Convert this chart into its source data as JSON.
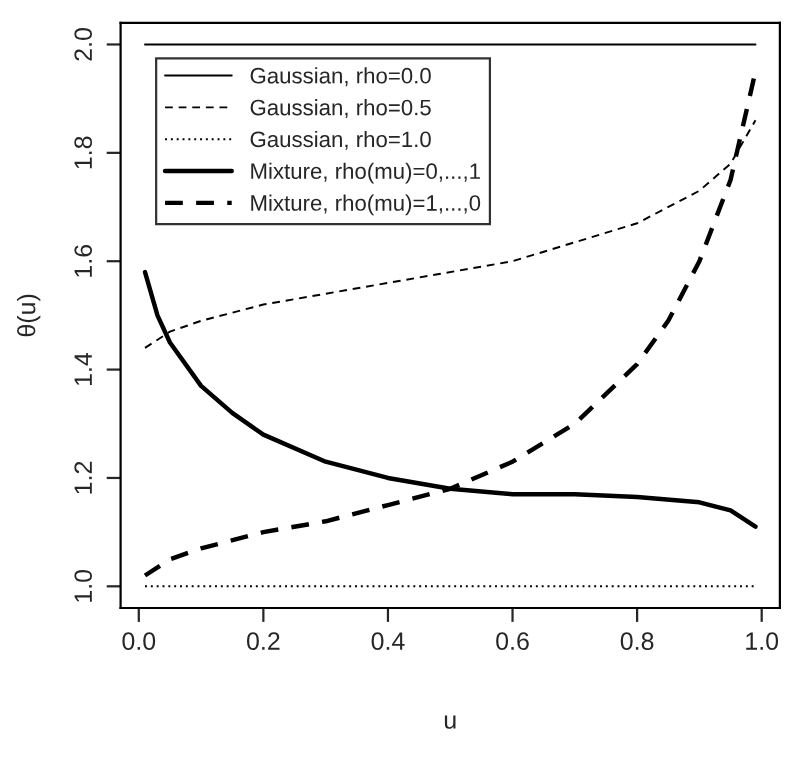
{
  "chart_data": {
    "type": "line",
    "xlabel": "u",
    "ylabel": "θ(u)",
    "xlim": [
      -0.0292,
      1.0292
    ],
    "ylim": [
      0.96,
      2.04
    ],
    "xticks": [
      {
        "value": 0.0,
        "label": "0.0"
      },
      0.2,
      0.4,
      0.6,
      0.8,
      {
        "value": 1.0,
        "label": "1.0"
      }
    ],
    "yticks": [
      {
        "value": 1.0,
        "label": "1.0"
      },
      1.2,
      1.4,
      1.6,
      1.8,
      {
        "value": 2.0,
        "label": "2.0"
      }
    ],
    "grid": false,
    "legend": "top left",
    "marker": "none",
    "series": [
      {
        "name": "Gaussian, rho=0.0",
        "color": "#000000",
        "line_style": "solid",
        "x": [
          0.01,
          0.99
        ],
        "values": [
          2.0,
          2.0
        ]
      },
      {
        "name": "Gaussian, rho=0.5",
        "color": "#000000",
        "line_style": "dashed",
        "x": [
          0.01,
          0.05,
          0.1,
          0.2,
          0.4,
          0.6,
          0.8,
          0.9,
          0.95,
          0.99
        ],
        "values": [
          1.44,
          1.47,
          1.49,
          1.52,
          1.56,
          1.6,
          1.67,
          1.73,
          1.78,
          1.86
        ]
      },
      {
        "name": "Gaussian, rho=1.0",
        "color": "#000000",
        "line_style": "dotted",
        "x": [
          0.01,
          0.99
        ],
        "values": [
          1.0,
          1.0
        ]
      },
      {
        "name": "Mixture, rho(mu)=0,...,1",
        "color": "#000000",
        "line_style": "solid",
        "x": [
          0.01,
          0.03,
          0.05,
          0.1,
          0.15,
          0.2,
          0.3,
          0.4,
          0.5,
          0.6,
          0.7,
          0.8,
          0.9,
          0.95,
          0.99
        ],
        "values": [
          1.58,
          1.5,
          1.45,
          1.37,
          1.32,
          1.28,
          1.23,
          1.2,
          1.18,
          1.17,
          1.17,
          1.165,
          1.155,
          1.14,
          1.11
        ]
      },
      {
        "name": "Mixture, rho(mu)=1,...,0",
        "color": "#000000",
        "line_style": "dashed",
        "x": [
          0.01,
          0.05,
          0.1,
          0.2,
          0.3,
          0.4,
          0.5,
          0.6,
          0.7,
          0.8,
          0.85,
          0.9,
          0.95,
          0.99
        ],
        "values": [
          1.02,
          1.05,
          1.07,
          1.1,
          1.12,
          1.15,
          1.18,
          1.23,
          1.3,
          1.41,
          1.49,
          1.6,
          1.75,
          1.95
        ]
      }
    ]
  }
}
